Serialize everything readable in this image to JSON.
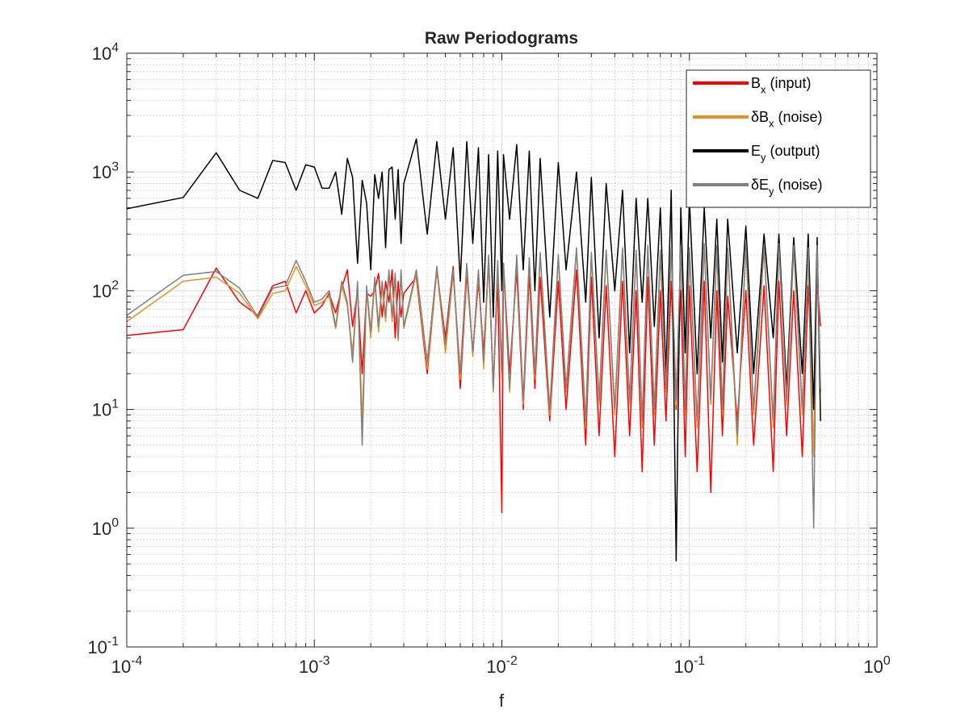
{
  "chart_data": {
    "type": "line",
    "title": "Raw Periodograms",
    "x_label": "f",
    "xscale": "log",
    "yscale": "log",
    "grid": true,
    "minor_grid": true,
    "legend_position": "northeast",
    "xlim": [
      0.0001,
      1
    ],
    "ylim": [
      0.1,
      10000
    ],
    "xticks": [
      {
        "value": 0.0001,
        "label": "10^{-4}"
      },
      {
        "value": 0.001,
        "label": "10^{-3}"
      },
      {
        "value": 0.01,
        "label": "10^{-2}"
      },
      {
        "value": 0.1,
        "label": "10^{-1}"
      },
      {
        "value": 1,
        "label": "10^0"
      }
    ],
    "yticks": [
      {
        "value": 0.1,
        "label": "10^{-1}"
      },
      {
        "value": 1,
        "label": "10^0"
      },
      {
        "value": 10,
        "label": "10^1"
      },
      {
        "value": 100,
        "label": "10^2"
      },
      {
        "value": 1000,
        "label": "10^3"
      },
      {
        "value": 10000,
        "label": "10^4"
      }
    ],
    "x": [
      0.0001,
      0.0002,
      0.0003,
      0.0004,
      0.0005,
      0.0006,
      0.0007,
      0.0008,
      0.0009,
      0.001,
      0.0011,
      0.0012,
      0.0013,
      0.0014,
      0.0015,
      0.0016,
      0.0017,
      0.0018,
      0.0019,
      0.002,
      0.0021,
      0.0022,
      0.0023,
      0.0024,
      0.0025,
      0.0026,
      0.0027,
      0.0028,
      0.0029,
      0.003,
      0.0035,
      0.004,
      0.0045,
      0.005,
      0.0055,
      0.006,
      0.0065,
      0.007,
      0.0075,
      0.008,
      0.0085,
      0.009,
      0.0095,
      0.01,
      0.0102,
      0.011,
      0.012,
      0.013,
      0.014,
      0.015,
      0.016,
      0.018,
      0.02,
      0.022,
      0.025,
      0.028,
      0.03,
      0.033,
      0.036,
      0.04,
      0.044,
      0.048,
      0.052,
      0.056,
      0.06,
      0.065,
      0.07,
      0.075,
      0.08,
      0.085,
      0.09,
      0.095,
      0.1,
      0.11,
      0.12,
      0.13,
      0.14,
      0.15,
      0.16,
      0.18,
      0.2,
      0.22,
      0.25,
      0.28,
      0.3,
      0.33,
      0.36,
      0.4,
      0.43,
      0.46,
      0.48,
      0.5
    ],
    "series": [
      {
        "name": "B_x (input)",
        "color": "#ff0000",
        "values": [
          42,
          47,
          155,
          80,
          62,
          110,
          120,
          65,
          100,
          65,
          75,
          95,
          65,
          105,
          150,
          50,
          100,
          20,
          95,
          90,
          100,
          140,
          60,
          120,
          80,
          150,
          40,
          120,
          60,
          95,
          130,
          20,
          150,
          40,
          160,
          15,
          140,
          30,
          120,
          30,
          180,
          15,
          130,
          1.35,
          170,
          20,
          150,
          10,
          140,
          15,
          130,
          8,
          120,
          10,
          150,
          5,
          130,
          6,
          110,
          4,
          120,
          6,
          100,
          3,
          130,
          5,
          100,
          8,
          120,
          10,
          100,
          4,
          110,
          3,
          120,
          2,
          100,
          6,
          90,
          8,
          100,
          5,
          110,
          3,
          120,
          6,
          100,
          4,
          110,
          10,
          120,
          50
        ]
      },
      {
        "name": "δB_x (noise)",
        "color": "#ed8f1c",
        "values": [
          55,
          120,
          130,
          95,
          58,
          95,
          100,
          160,
          110,
          75,
          80,
          90,
          48,
          110,
          75,
          30,
          110,
          8,
          100,
          40,
          120,
          45,
          110,
          55,
          140,
          55,
          130,
          38,
          140,
          48,
          140,
          22,
          150,
          30,
          140,
          18,
          160,
          28,
          140,
          22,
          190,
          14,
          170,
          18,
          160,
          14,
          190,
          11,
          180,
          18,
          200,
          9,
          190,
          14,
          220,
          7,
          200,
          11,
          210,
          9,
          220,
          11,
          210,
          7,
          230,
          9,
          210,
          14,
          220,
          11,
          230,
          9,
          220,
          7,
          240,
          11,
          230,
          9,
          220,
          5,
          240,
          9,
          230,
          7,
          240,
          11,
          230,
          9,
          220,
          4,
          230,
          14
        ]
      },
      {
        "name": "E_y (output)",
        "color": "#000000",
        "values": [
          490,
          610,
          1450,
          700,
          600,
          1250,
          1200,
          700,
          1150,
          1100,
          730,
          730,
          1000,
          440,
          1300,
          900,
          170,
          850,
          550,
          150,
          950,
          600,
          1000,
          230,
          1050,
          1100,
          400,
          1050,
          250,
          800,
          1900,
          300,
          1800,
          400,
          1600,
          120,
          1800,
          250,
          1600,
          80,
          1400,
          60,
          1500,
          100,
          1400,
          400,
          1700,
          150,
          1500,
          100,
          1300,
          60,
          1200,
          150,
          1000,
          80,
          900,
          40,
          800,
          100,
          700,
          30,
          600,
          80,
          600,
          50,
          500,
          20,
          700,
          0.53,
          500,
          30,
          600,
          20,
          500,
          40,
          400,
          25,
          400,
          30,
          350,
          20,
          300,
          40,
          300,
          15,
          280,
          20,
          300,
          10,
          280,
          8
        ]
      },
      {
        "name": "δE_y (noise)",
        "color": "#808080",
        "values": [
          62,
          135,
          145,
          105,
          60,
          105,
          110,
          180,
          120,
          80,
          85,
          100,
          50,
          120,
          80,
          25,
          120,
          5,
          110,
          45,
          130,
          50,
          120,
          60,
          150,
          60,
          140,
          40,
          150,
          50,
          150,
          25,
          160,
          35,
          150,
          20,
          170,
          30,
          150,
          25,
          200,
          15,
          180,
          20,
          170,
          15,
          200,
          12,
          190,
          20,
          210,
          10,
          200,
          15,
          230,
          8,
          210,
          12,
          220,
          10,
          230,
          12,
          220,
          8,
          240,
          10,
          220,
          15,
          230,
          12,
          240,
          10,
          230,
          8,
          250,
          12,
          240,
          10,
          230,
          6,
          250,
          10,
          240,
          8,
          250,
          12,
          240,
          10,
          230,
          1,
          240,
          15
        ]
      }
    ]
  }
}
